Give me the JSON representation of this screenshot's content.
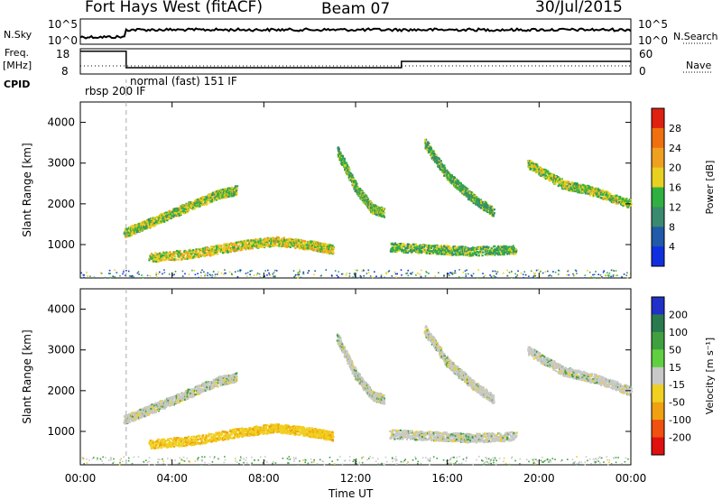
{
  "header": {
    "radar_title": "Fort Hays West (fitACF)",
    "beam": "Beam 07",
    "date": "30/Jul/2015"
  },
  "top_panels": {
    "nsky_label": "N.Sky",
    "nsearch_label": "N.Search",
    "nave_label": "Nave",
    "freq_label_line1": "Freq.",
    "freq_label_line2": "[MHz]",
    "cpid_label": "CPID",
    "nsky_ticks": [
      "10^5",
      "10^0"
    ],
    "nsearch_ticks": [
      "10^5",
      "10^0"
    ],
    "freq_ticks": [
      "18",
      "8"
    ],
    "nave_ticks": [
      "60",
      "0"
    ],
    "cpid_1": "rbsp 200 IF",
    "cpid_2": "normal (fast) 151 IF"
  },
  "x_axis": {
    "label": "Time UT",
    "ticks": [
      "00:00",
      "04:00",
      "08:00",
      "12:00",
      "16:00",
      "20:00",
      "00:00"
    ]
  },
  "y_axis": {
    "label": "Slant Range [km]",
    "ticks": [
      "1000",
      "2000",
      "3000",
      "4000"
    ]
  },
  "power_scale": {
    "label": "Power [dB]",
    "ticks": [
      "4",
      "8",
      "12",
      "16",
      "20",
      "24",
      "28"
    ],
    "colors": [
      "#1030e0",
      "#205aa8",
      "#3a8a70",
      "#30b040",
      "#e8d020",
      "#f0a020",
      "#f07010",
      "#e02010"
    ]
  },
  "velocity_scale": {
    "label": "Velocity [m s⁻¹]",
    "ticks": [
      "200",
      "100",
      "50",
      "15",
      "-15",
      "-50",
      "-100",
      "-200"
    ],
    "colors": [
      "#2030c8",
      "#2a7a50",
      "#40a040",
      "#60d040",
      "#c8c8c8",
      "#f0d020",
      "#f0a010",
      "#f05010",
      "#e01010"
    ]
  },
  "chart_data": {
    "type": "heatmap",
    "x_range_hours": [
      0,
      24
    ],
    "y_range_km": [
      180,
      4500
    ],
    "cpid_change_hour": 2.0,
    "freq_mhz_segments": [
      {
        "start": 0,
        "end": 2.0,
        "freq": 17
      },
      {
        "start": 2.0,
        "end": 14.0,
        "freq": 10.5
      },
      {
        "start": 14.0,
        "end": 24,
        "freq": 13
      }
    ],
    "echo_regions": [
      {
        "name": "band-a",
        "points": [
          [
            1.9,
            1300
          ],
          [
            3.0,
            1550
          ],
          [
            4.5,
            1900
          ],
          [
            6.0,
            2250
          ],
          [
            6.8,
            2350
          ]
        ],
        "power": 16,
        "velocity": 0
      },
      {
        "name": "band-b",
        "points": [
          [
            3.0,
            700
          ],
          [
            5.0,
            800
          ],
          [
            7.0,
            1000
          ],
          [
            8.5,
            1100
          ],
          [
            10.0,
            1000
          ],
          [
            11.0,
            900
          ]
        ],
        "power": 18,
        "velocity": -40
      },
      {
        "name": "band-c",
        "points": [
          [
            11.2,
            3300
          ],
          [
            12.0,
            2400
          ],
          [
            12.7,
            1900
          ],
          [
            13.2,
            1800
          ]
        ],
        "power": 14,
        "velocity": 0
      },
      {
        "name": "band-d",
        "points": [
          [
            13.5,
            950
          ],
          [
            15.5,
            900
          ],
          [
            17.0,
            850
          ],
          [
            19.0,
            900
          ]
        ],
        "power": 14,
        "velocity": 0
      },
      {
        "name": "band-e",
        "points": [
          [
            15.0,
            3500
          ],
          [
            16.0,
            2700
          ],
          [
            17.0,
            2200
          ],
          [
            18.0,
            1800
          ]
        ],
        "power": 13,
        "velocity": 0
      },
      {
        "name": "band-f",
        "points": [
          [
            19.5,
            3000
          ],
          [
            21.0,
            2500
          ],
          [
            22.5,
            2300
          ],
          [
            24.0,
            2000
          ]
        ],
        "power": 16,
        "velocity": 0
      }
    ]
  }
}
